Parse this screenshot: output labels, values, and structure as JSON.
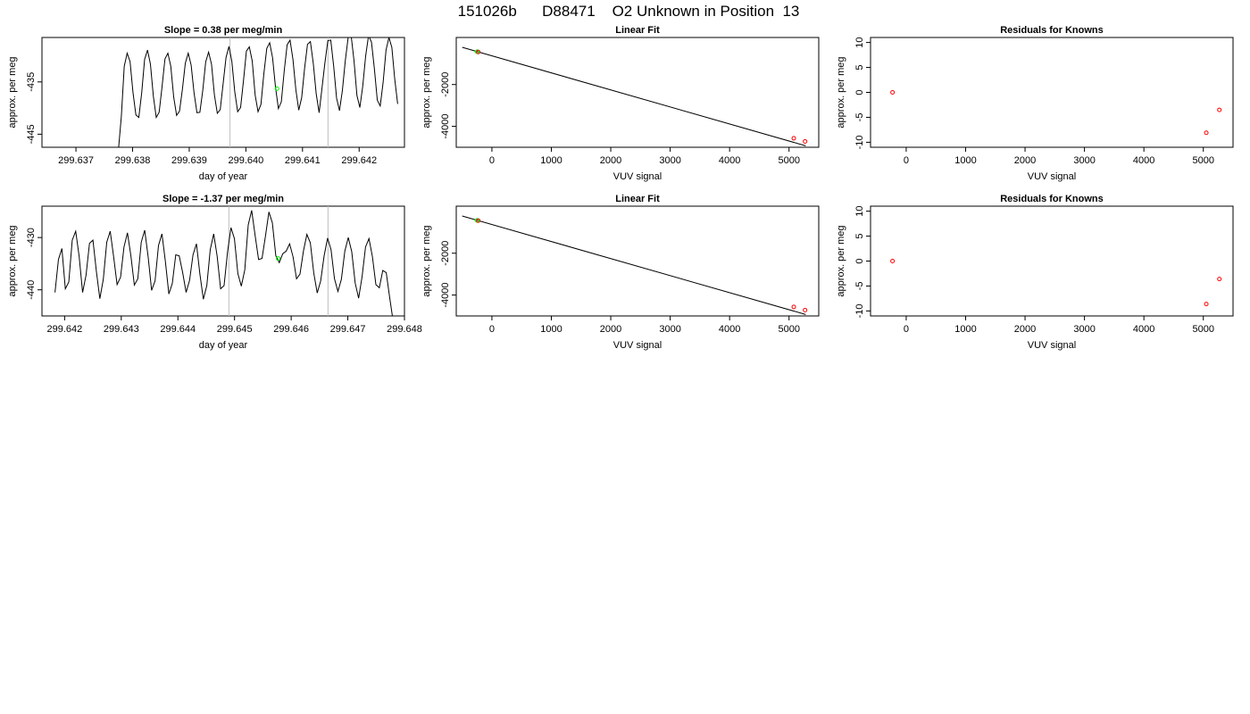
{
  "title": "151026b      D88471    O2 Unknown in Position  13",
  "colors": {
    "line": "#000000",
    "known": "#ff0000",
    "unknown": "#00ff00",
    "vline": "#bebebe",
    "frame": "#000000"
  },
  "chart_data": [
    {
      "type": "line",
      "title": "Slope =  0.38  per meg/min",
      "xlabel": "day of year",
      "ylabel": "approx. per meg",
      "xlim": [
        299.6364,
        299.6428
      ],
      "ylim": [
        -447.5,
        -426.5
      ],
      "xticks": [
        299.637,
        299.638,
        299.639,
        299.64,
        299.641,
        299.642
      ],
      "xtick_labels": [
        "299.637",
        "299.638",
        "299.639",
        "299.640",
        "299.641",
        "299.642"
      ],
      "yticks": [
        -445,
        -435
      ],
      "ytick_labels": [
        "-445",
        "-435"
      ],
      "vlines": [
        299.63972,
        299.64145
      ],
      "series": [
        {
          "x_start": 299.63775,
          "x_end": 299.64268,
          "values": [
            -448,
            -441.6,
            -432.0,
            -429.5,
            -431.1,
            -437.0,
            -441.3,
            -441.8,
            -437.1,
            -430.7,
            -428.9,
            -431.6,
            -437.7,
            -441.8,
            -440.8,
            -435.9,
            -430.6,
            -429.5,
            -432.0,
            -437.9,
            -441.4,
            -440.6,
            -436.4,
            -431.4,
            -429.5,
            -431.8,
            -437.1,
            -440.9,
            -440.8,
            -436.6,
            -431.2,
            -429.3,
            -431.6,
            -437.5,
            -441.0,
            -440.3,
            -435.3,
            -430.3,
            -428.2,
            -431.1,
            -436.9,
            -440.7,
            -439.9,
            -434.7,
            -429.1,
            -428.3,
            -431.0,
            -437.5,
            -440.7,
            -439.3,
            -433.4,
            -428.6,
            -427.5,
            -430.4,
            -436.0,
            -440.1,
            -438.8,
            -432.9,
            -427.9,
            -427.0,
            -430.7,
            -436.5,
            -440.4,
            -438.0,
            -432.4,
            -427.8,
            -427.3,
            -431.5,
            -437.3,
            -440.9,
            -436.1,
            -431.3,
            -427.1,
            -427.0,
            -432.0,
            -438.1,
            -440.5,
            -436.6,
            -430.9,
            -426.4,
            -426.1,
            -431.0,
            -437.6,
            -439.9,
            -435.8,
            -430.0,
            -426.1,
            -427.4,
            -432.5,
            -438.5,
            -439.6,
            -435.1,
            -428.9,
            -426.5,
            -428.4,
            -434.5,
            -439.2
          ]
        }
      ],
      "points": [
        {
          "x": 299.64055,
          "y": -436.3,
          "color": "unknown"
        }
      ]
    },
    {
      "type": "scatter",
      "title": "Linear Fit",
      "xlabel": "VUV signal",
      "ylabel": "approx. per meg",
      "xlim": [
        -600,
        5500
      ],
      "ylim": [
        -5000,
        250
      ],
      "xticks": [
        0,
        1000,
        2000,
        3000,
        4000,
        5000
      ],
      "xtick_labels": [
        "0",
        "1000",
        "2000",
        "3000",
        "4000",
        "5000"
      ],
      "yticks": [
        -4000,
        -2000
      ],
      "ytick_labels": [
        "-4000",
        "-2000"
      ],
      "fit_line": {
        "x1": -500,
        "y1": -220,
        "x2": 5280,
        "y2": -4930
      },
      "points": [
        {
          "x": -250,
          "y": -430,
          "color": "unknown"
        },
        {
          "x": -240,
          "y": -436,
          "color": "unknown"
        },
        {
          "x": -230,
          "y": -442,
          "color": "known"
        },
        {
          "x": 5080,
          "y": -4570,
          "color": "known"
        },
        {
          "x": 5270,
          "y": -4720,
          "color": "known"
        }
      ]
    },
    {
      "type": "scatter",
      "title": "Residuals for Knowns",
      "xlabel": "VUV signal",
      "ylabel": "approx. per meg",
      "xlim": [
        -600,
        5500
      ],
      "ylim": [
        -11,
        11
      ],
      "xticks": [
        0,
        1000,
        2000,
        3000,
        4000,
        5000
      ],
      "xtick_labels": [
        "0",
        "1000",
        "2000",
        "3000",
        "4000",
        "5000"
      ],
      "yticks": [
        -10,
        -5,
        0,
        5,
        10
      ],
      "ytick_labels": [
        "-10",
        "-5",
        "0",
        "5",
        "10"
      ],
      "points": [
        {
          "x": -230,
          "y": 0.0,
          "color": "known"
        },
        {
          "x": 5050,
          "y": -8.1,
          "color": "known"
        },
        {
          "x": 5270,
          "y": -3.5,
          "color": "known"
        }
      ]
    },
    {
      "type": "line",
      "title": "Slope =  -1.37  per meg/min",
      "xlabel": "day of year",
      "ylabel": "approx. per meg",
      "xlim": [
        299.6416,
        299.648
      ],
      "ylim": [
        -445,
        -424
      ],
      "xticks": [
        299.642,
        299.643,
        299.644,
        299.645,
        299.646,
        299.647,
        299.648
      ],
      "xtick_labels": [
        "299.642",
        "299.643",
        "299.644",
        "299.645",
        "299.646",
        "299.647",
        "299.648"
      ],
      "yticks": [
        -440,
        -430
      ],
      "ytick_labels": [
        "-440",
        "-430"
      ],
      "vlines": [
        299.6449,
        299.64665
      ],
      "series": [
        {
          "x_start": 299.64183,
          "x_end": 299.6478,
          "values": [
            -440.5,
            -434.2,
            -432.1,
            -439.8,
            -438.5,
            -430.5,
            -428.8,
            -433.6,
            -440.5,
            -437.2,
            -431.1,
            -430.5,
            -436.5,
            -441.7,
            -438.0,
            -430.9,
            -428.8,
            -433.7,
            -439.0,
            -437.6,
            -431.8,
            -429.1,
            -433.5,
            -439.1,
            -437.9,
            -430.9,
            -428.6,
            -433.7,
            -440.1,
            -438.3,
            -431.5,
            -429.3,
            -434.6,
            -440.8,
            -438.8,
            -433.3,
            -433.5,
            -436.7,
            -440.5,
            -438.2,
            -433.3,
            -431.2,
            -437.0,
            -441.8,
            -439.2,
            -432.3,
            -429.3,
            -433.6,
            -439.8,
            -439.2,
            -432.8,
            -428.1,
            -430.2,
            -436.9,
            -439.3,
            -436.2,
            -427.6,
            -424.8,
            -429.6,
            -434.2,
            -434.0,
            -429.7,
            -425.1,
            -427.2,
            -433.5,
            -434.8,
            -433.1,
            -432.6,
            -431.2,
            -433.7,
            -437.9,
            -437.0,
            -432.6,
            -429.4,
            -431.0,
            -436.8,
            -440.6,
            -438.3,
            -433.5,
            -430.1,
            -432.3,
            -437.9,
            -440.3,
            -438.0,
            -432.6,
            -430.0,
            -432.7,
            -438.7,
            -441.6,
            -437.5,
            -431.8,
            -430.2,
            -433.7,
            -439.0,
            -439.6,
            -436.3,
            -436.7,
            -441.5,
            -446
          ]
        }
      ],
      "points": [
        {
          "x": 299.64577,
          "y": -434.0,
          "color": "unknown"
        }
      ]
    },
    {
      "type": "scatter",
      "title": "Linear Fit",
      "xlabel": "VUV signal",
      "ylabel": "approx. per meg",
      "xlim": [
        -600,
        5500
      ],
      "ylim": [
        -5000,
        250
      ],
      "xticks": [
        0,
        1000,
        2000,
        3000,
        4000,
        5000
      ],
      "xtick_labels": [
        "0",
        "1000",
        "2000",
        "3000",
        "4000",
        "5000"
      ],
      "yticks": [
        -4000,
        -2000
      ],
      "ytick_labels": [
        "-4000",
        "-2000"
      ],
      "fit_line": {
        "x1": -500,
        "y1": -220,
        "x2": 5280,
        "y2": -4930
      },
      "points": [
        {
          "x": -250,
          "y": -430,
          "color": "unknown"
        },
        {
          "x": -240,
          "y": -436,
          "color": "unknown"
        },
        {
          "x": -230,
          "y": -442,
          "color": "known"
        },
        {
          "x": 5080,
          "y": -4570,
          "color": "known"
        },
        {
          "x": 5270,
          "y": -4720,
          "color": "known"
        }
      ]
    },
    {
      "type": "scatter",
      "title": "Residuals for Knowns",
      "xlabel": "VUV signal",
      "ylabel": "approx. per meg",
      "xlim": [
        -600,
        5500
      ],
      "ylim": [
        -11,
        11
      ],
      "xticks": [
        0,
        1000,
        2000,
        3000,
        4000,
        5000
      ],
      "xtick_labels": [
        "0",
        "1000",
        "2000",
        "3000",
        "4000",
        "5000"
      ],
      "yticks": [
        -10,
        -5,
        0,
        5,
        10
      ],
      "ytick_labels": [
        "-10",
        "-5",
        "0",
        "5",
        "10"
      ],
      "points": [
        {
          "x": -230,
          "y": 0.0,
          "color": "known"
        },
        {
          "x": 5050,
          "y": -8.6,
          "color": "known"
        },
        {
          "x": 5270,
          "y": -3.6,
          "color": "known"
        }
      ]
    }
  ]
}
